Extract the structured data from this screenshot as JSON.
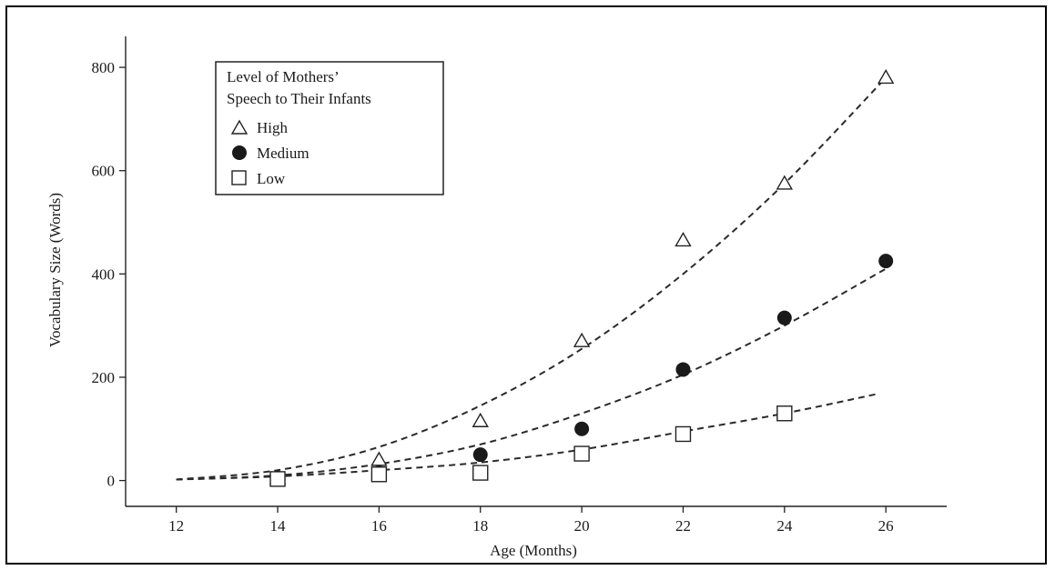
{
  "chart_data": {
    "type": "scatter",
    "title": "",
    "xlabel": "Age (Months)",
    "ylabel": "Vocabulary Size (Words)",
    "xlim": [
      11,
      27.2
    ],
    "ylim": [
      -50,
      860
    ],
    "xticks": [
      12,
      14,
      16,
      18,
      20,
      22,
      24,
      26
    ],
    "yticks": [
      0,
      200,
      400,
      600,
      800
    ],
    "grid": false,
    "legend": {
      "title_line1": "Level of Mothers’",
      "title_line2": "Speech to Their Infants",
      "placement": "top-left"
    },
    "series": [
      {
        "name": "High",
        "marker": "open-triangle",
        "x": [
          14,
          16,
          18,
          20,
          22,
          24,
          26
        ],
        "y": [
          5,
          40,
          115,
          270,
          465,
          575,
          780
        ],
        "trend": {
          "x": [
            12,
            14,
            16,
            18,
            20,
            22,
            24,
            26
          ],
          "y": [
            2,
            20,
            65,
            145,
            255,
            400,
            575,
            780
          ]
        }
      },
      {
        "name": "Medium",
        "marker": "filled-circle",
        "x": [
          14,
          16,
          18,
          20,
          22,
          24,
          26
        ],
        "y": [
          5,
          15,
          50,
          100,
          215,
          315,
          425
        ],
        "trend": {
          "x": [
            12,
            14,
            16,
            18,
            20,
            22,
            24,
            26
          ],
          "y": [
            2,
            10,
            32,
            70,
            130,
            205,
            300,
            410
          ]
        }
      },
      {
        "name": "Low",
        "marker": "open-square",
        "x": [
          14,
          16,
          18,
          20,
          22,
          24
        ],
        "y": [
          3,
          12,
          15,
          52,
          90,
          130
        ],
        "trend": {
          "x": [
            12,
            14,
            16,
            18,
            20,
            22,
            24,
            25.8
          ],
          "y": [
            2,
            8,
            20,
            35,
            60,
            95,
            130,
            167
          ]
        }
      }
    ]
  }
}
